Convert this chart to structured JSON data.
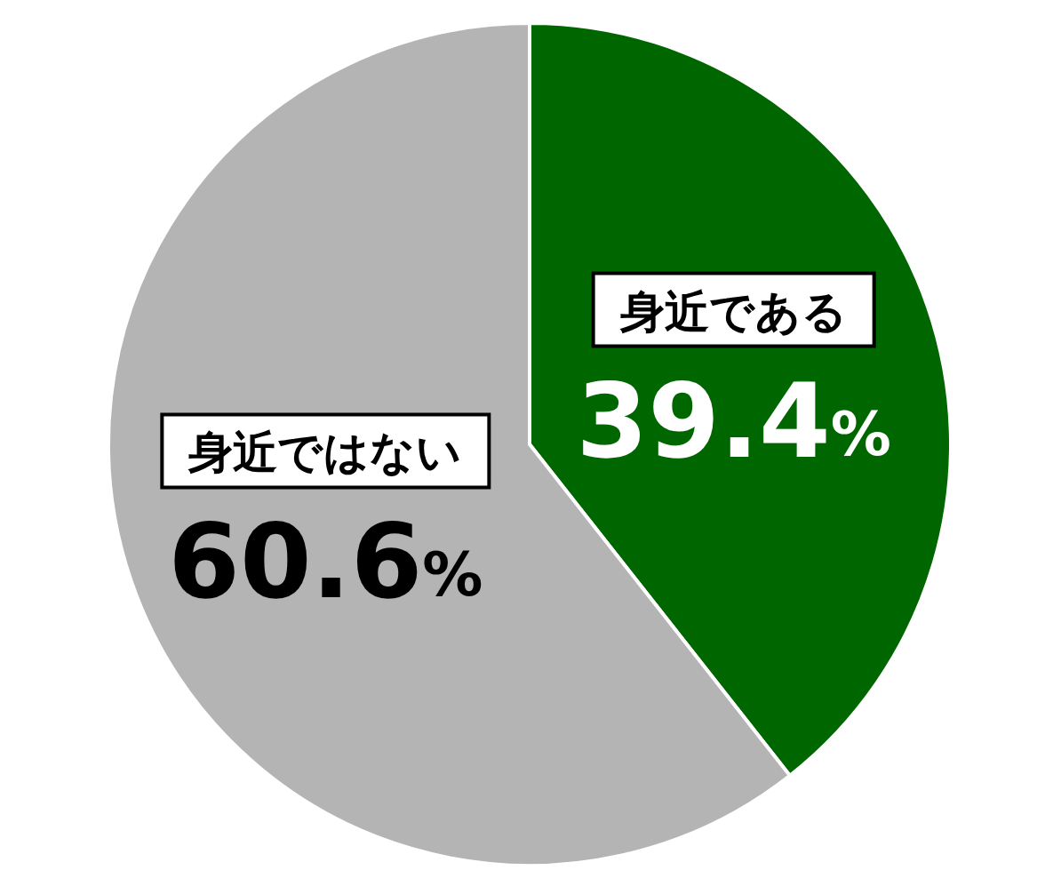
{
  "chart_data": {
    "type": "pie",
    "categories": [
      "身近である",
      "身近ではない"
    ],
    "values": [
      39.4,
      60.6
    ],
    "colors": [
      "#006600",
      "#b4b4b4"
    ],
    "value_labels": [
      "39.4%",
      "60.6%"
    ],
    "legend": false
  }
}
